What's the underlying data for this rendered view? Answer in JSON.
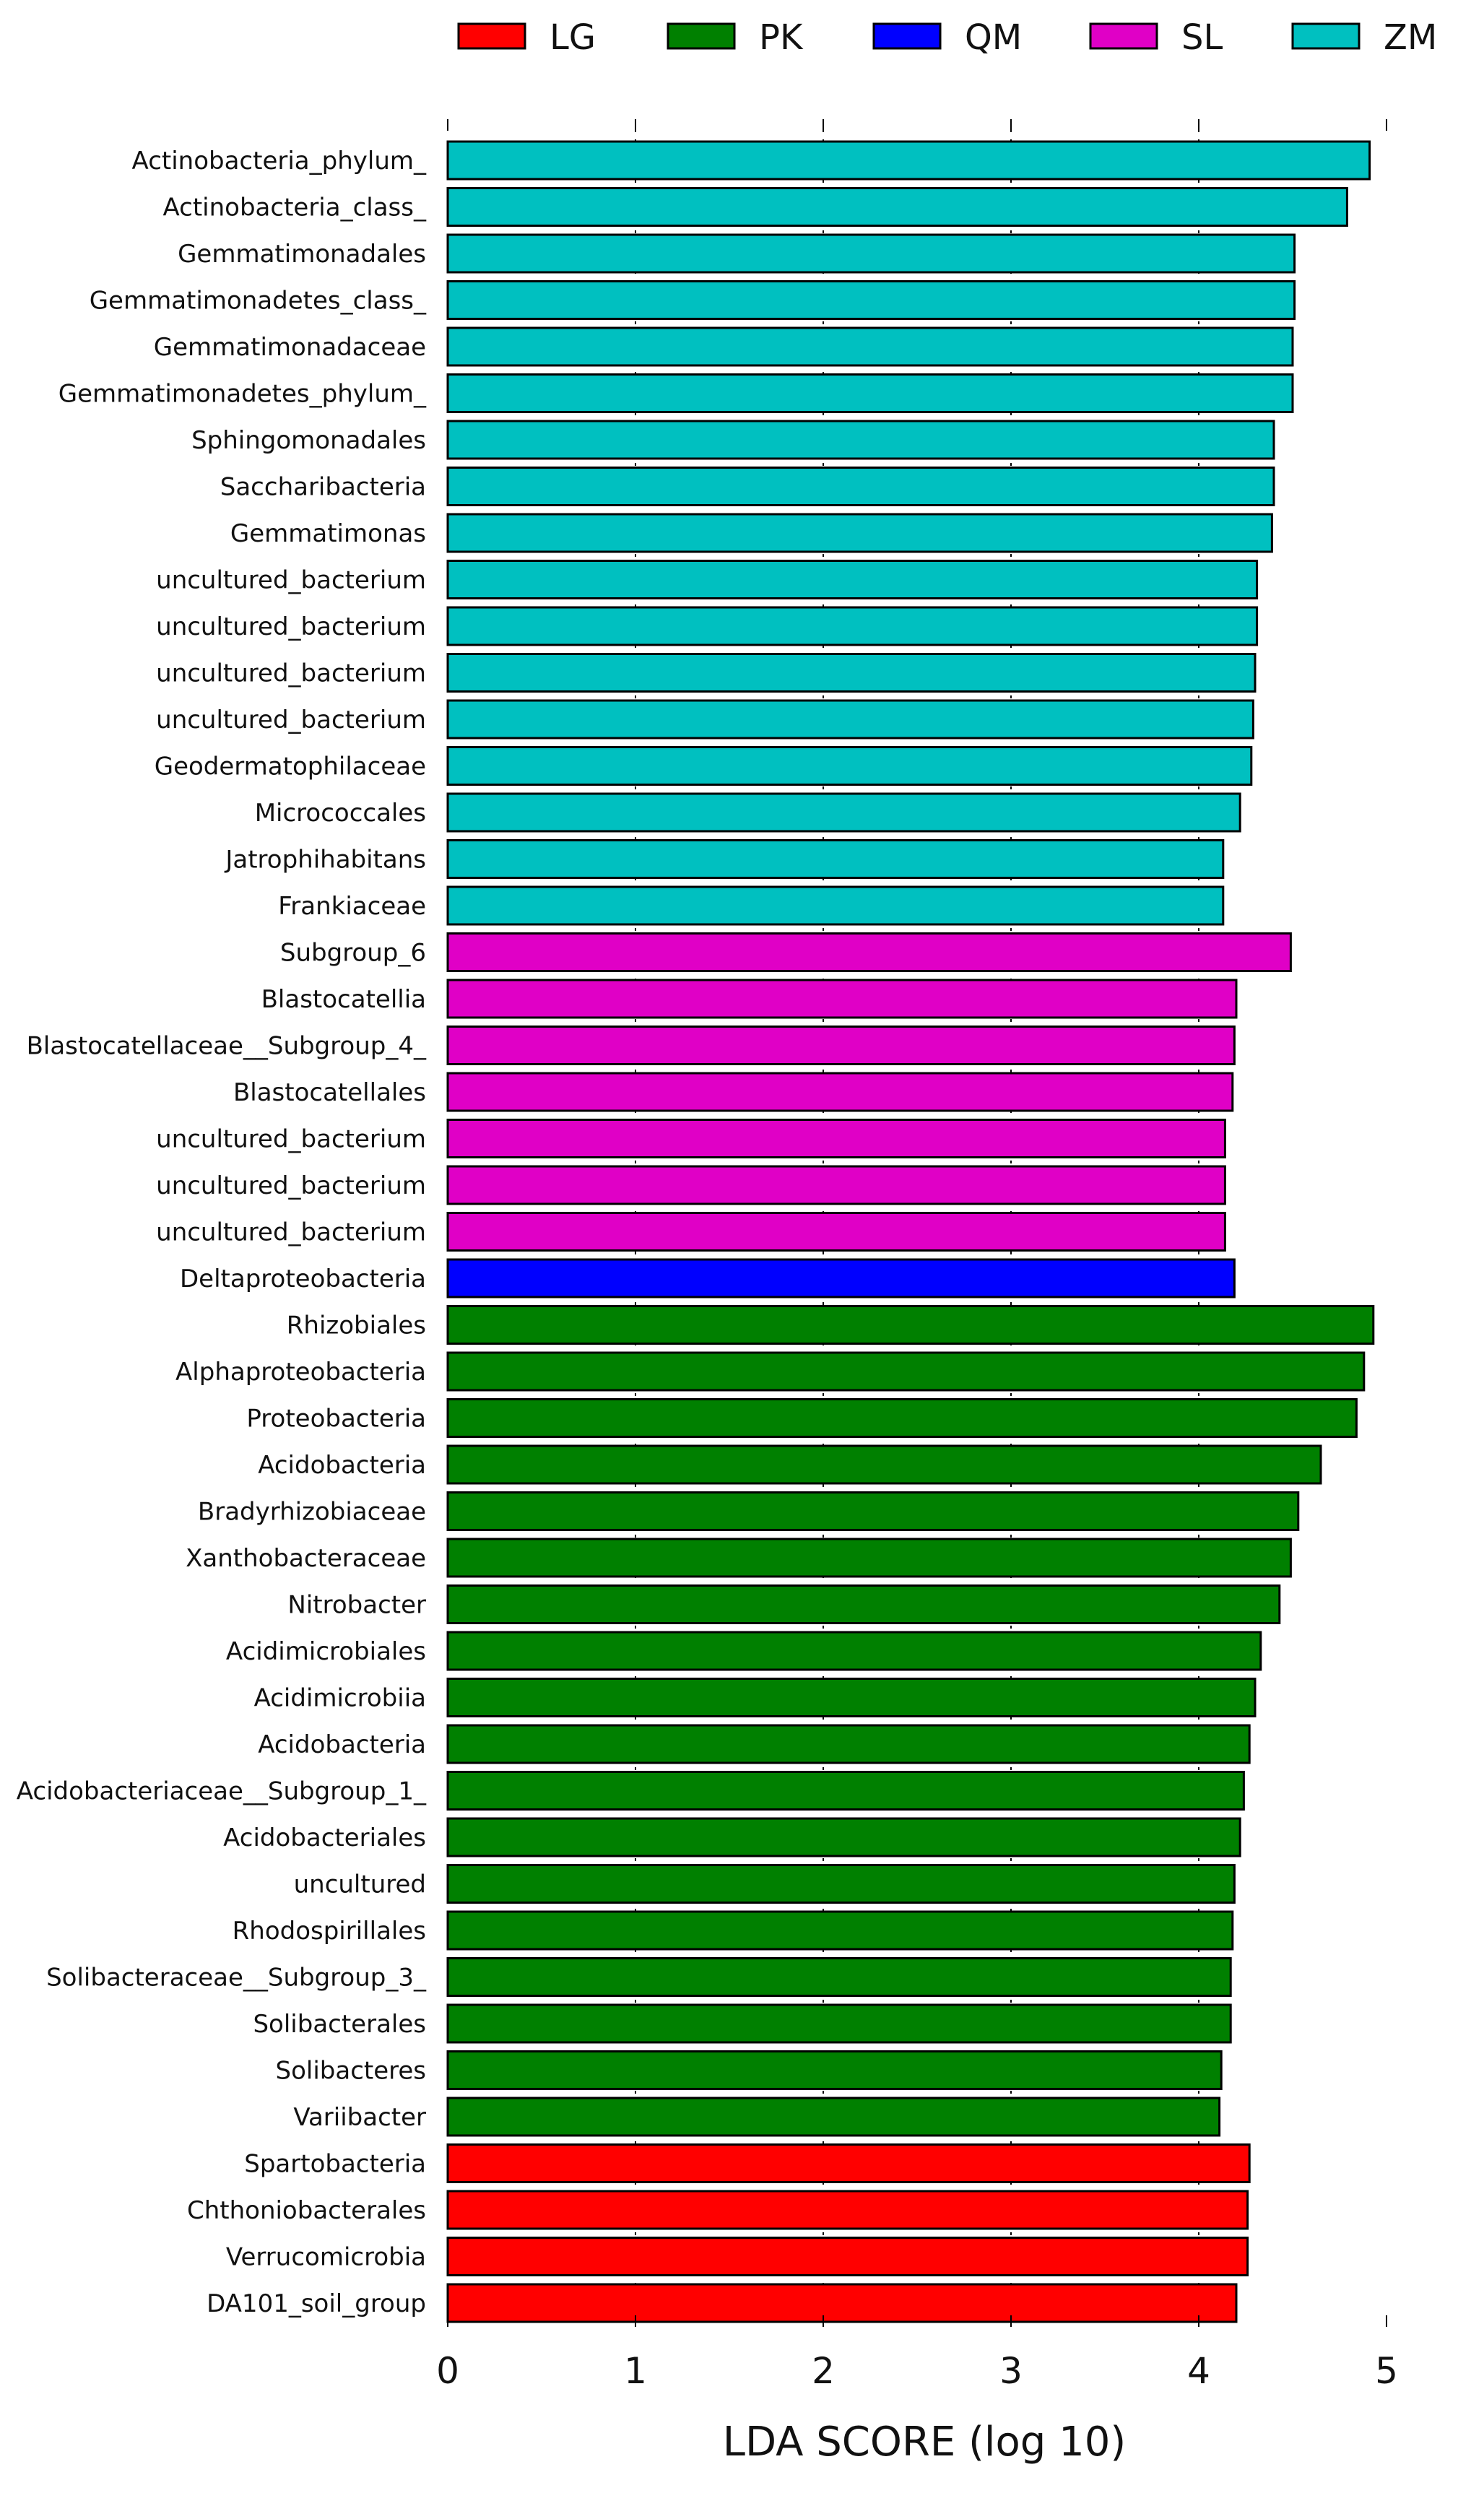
{
  "chart_data": {
    "type": "bar",
    "orientation": "horizontal",
    "xlabel": "LDA SCORE (log 10)",
    "xlim": [
      0,
      5
    ],
    "xticks": [
      0,
      1,
      2,
      3,
      4,
      5
    ],
    "grid": "vertical dotted",
    "legend": [
      {
        "name": "LG",
        "color": "#ff0000"
      },
      {
        "name": "PK",
        "color": "#008000"
      },
      {
        "name": "QM",
        "color": "#0000ff"
      },
      {
        "name": "SL",
        "color": "#e000c6"
      },
      {
        "name": "ZM",
        "color": "#00c0c0"
      }
    ],
    "legend_position": "top",
    "bars": [
      {
        "label": "Actinobacteria_phylum_",
        "value": 4.91,
        "group": "ZM"
      },
      {
        "label": "Actinobacteria_class_",
        "value": 4.79,
        "group": "ZM"
      },
      {
        "label": "Gemmatimonadales",
        "value": 4.51,
        "group": "ZM"
      },
      {
        "label": "Gemmatimonadetes_class_",
        "value": 4.51,
        "group": "ZM"
      },
      {
        "label": "Gemmatimonadaceae",
        "value": 4.5,
        "group": "ZM"
      },
      {
        "label": "Gemmatimonadetes_phylum_",
        "value": 4.5,
        "group": "ZM"
      },
      {
        "label": "Sphingomonadales",
        "value": 4.4,
        "group": "ZM"
      },
      {
        "label": "Saccharibacteria",
        "value": 4.4,
        "group": "ZM"
      },
      {
        "label": "Gemmatimonas",
        "value": 4.39,
        "group": "ZM"
      },
      {
        "label": "uncultured_bacterium",
        "value": 4.31,
        "group": "ZM"
      },
      {
        "label": "uncultured_bacterium",
        "value": 4.31,
        "group": "ZM"
      },
      {
        "label": "uncultured_bacterium",
        "value": 4.3,
        "group": "ZM"
      },
      {
        "label": "uncultured_bacterium",
        "value": 4.29,
        "group": "ZM"
      },
      {
        "label": "Geodermatophilaceae",
        "value": 4.28,
        "group": "ZM"
      },
      {
        "label": "Micrococcales",
        "value": 4.22,
        "group": "ZM"
      },
      {
        "label": "Jatrophihabitans",
        "value": 4.13,
        "group": "ZM"
      },
      {
        "label": "Frankiaceae",
        "value": 4.13,
        "group": "ZM"
      },
      {
        "label": "Subgroup_6",
        "value": 4.49,
        "group": "SL"
      },
      {
        "label": "Blastocatellia",
        "value": 4.2,
        "group": "SL"
      },
      {
        "label": "Blastocatellaceae__Subgroup_4_",
        "value": 4.19,
        "group": "SL"
      },
      {
        "label": "Blastocatellales",
        "value": 4.18,
        "group": "SL"
      },
      {
        "label": "uncultured_bacterium",
        "value": 4.14,
        "group": "SL"
      },
      {
        "label": "uncultured_bacterium",
        "value": 4.14,
        "group": "SL"
      },
      {
        "label": "uncultured_bacterium",
        "value": 4.14,
        "group": "SL"
      },
      {
        "label": "Deltaproteobacteria",
        "value": 4.19,
        "group": "QM"
      },
      {
        "label": "Rhizobiales",
        "value": 4.93,
        "group": "PK"
      },
      {
        "label": "Alphaproteobacteria",
        "value": 4.88,
        "group": "PK"
      },
      {
        "label": "Proteobacteria",
        "value": 4.84,
        "group": "PK"
      },
      {
        "label": "Acidobacteria",
        "value": 4.65,
        "group": "PK"
      },
      {
        "label": "Bradyrhizobiaceae",
        "value": 4.53,
        "group": "PK"
      },
      {
        "label": "Xanthobacteraceae",
        "value": 4.49,
        "group": "PK"
      },
      {
        "label": "Nitrobacter",
        "value": 4.43,
        "group": "PK"
      },
      {
        "label": "Acidimicrobiales",
        "value": 4.33,
        "group": "PK"
      },
      {
        "label": "Acidimicrobiia",
        "value": 4.3,
        "group": "PK"
      },
      {
        "label": "Acidobacteria",
        "value": 4.27,
        "group": "PK"
      },
      {
        "label": "Acidobacteriaceae__Subgroup_1_",
        "value": 4.24,
        "group": "PK"
      },
      {
        "label": "Acidobacteriales",
        "value": 4.22,
        "group": "PK"
      },
      {
        "label": "uncultured",
        "value": 4.19,
        "group": "PK"
      },
      {
        "label": "Rhodospirillales",
        "value": 4.18,
        "group": "PK"
      },
      {
        "label": "Solibacteraceae__Subgroup_3_",
        "value": 4.17,
        "group": "PK"
      },
      {
        "label": "Solibacterales",
        "value": 4.17,
        "group": "PK"
      },
      {
        "label": "Solibacteres",
        "value": 4.12,
        "group": "PK"
      },
      {
        "label": "Variibacter",
        "value": 4.11,
        "group": "PK"
      },
      {
        "label": "Spartobacteria",
        "value": 4.27,
        "group": "LG"
      },
      {
        "label": "Chthoniobacterales",
        "value": 4.26,
        "group": "LG"
      },
      {
        "label": "Verrucomicrobia",
        "value": 4.26,
        "group": "LG"
      },
      {
        "label": "DA101_soil_group",
        "value": 4.2,
        "group": "LG"
      }
    ]
  }
}
